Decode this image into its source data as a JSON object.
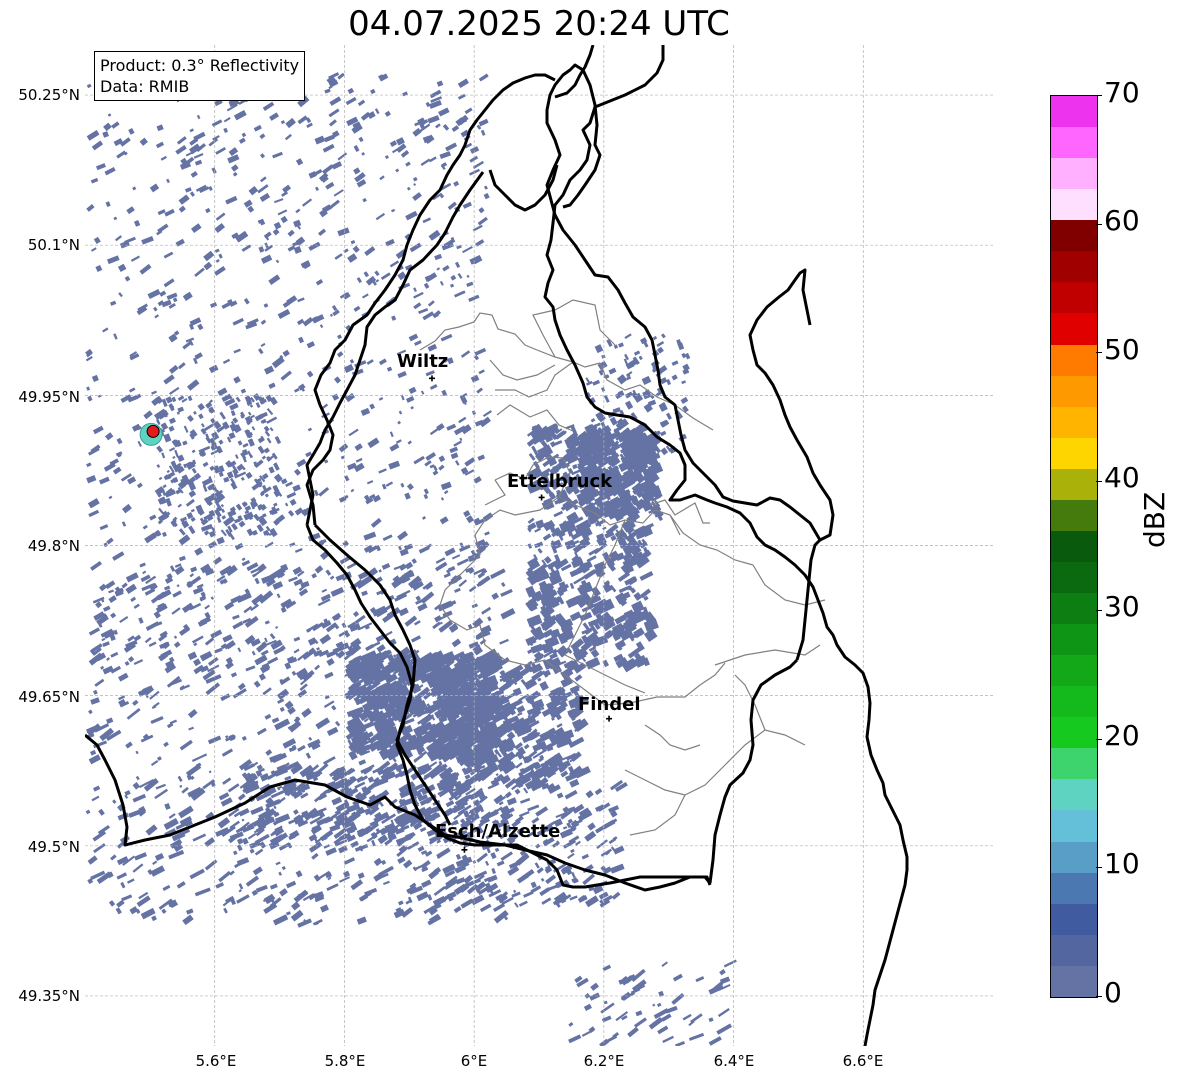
{
  "title": "04.07.2025 20:24 UTC",
  "product": {
    "line1": "Product: 0.3° Reflectivity",
    "line2": "Data: RMIB"
  },
  "lat_labels": [
    "50.25°N",
    "50.1°N",
    "49.95°N",
    "49.8°N",
    "49.65°N",
    "49.5°N",
    "49.35°N"
  ],
  "lon_labels": [
    "5.6°E",
    "5.8°E",
    "6°E",
    "6.2°E",
    "6.4°E",
    "6.6°E"
  ],
  "cities": [
    {
      "name": "Wiltz",
      "lon": 5.935,
      "lat": 49.967
    },
    {
      "name": "Ettelbruck",
      "lon": 6.104,
      "lat": 49.848
    },
    {
      "name": "Findel",
      "lon": 6.208,
      "lat": 49.627
    },
    {
      "name": "Esch/Alzette",
      "lon": 5.985,
      "lat": 49.496
    }
  ],
  "radar_site": {
    "lon": 5.505,
    "lat": 49.914
  },
  "extent": {
    "lon": [
      5.4,
      6.8
    ],
    "lat": [
      49.3,
      50.3
    ]
  },
  "colorbar": {
    "label": "dBZ",
    "min": 0,
    "max": 70,
    "ticks": [
      "0",
      "10",
      "20",
      "30",
      "40",
      "50",
      "60",
      "70"
    ],
    "colors": [
      "#6472a4",
      "#5366a0",
      "#405ba0",
      "#4b78b1",
      "#589ec6",
      "#64bfd8",
      "#5fd3c2",
      "#3dd46e",
      "#16c91f",
      "#14b91c",
      "#12a818",
      "#0f9515",
      "#0d7e12",
      "#0b6a0f",
      "#095a0c",
      "#457a0d",
      "#aab20a",
      "#ffd500",
      "#ffb400",
      "#ff9900",
      "#ff7b00",
      "#e10000",
      "#c00000",
      "#a00000",
      "#800000",
      "#ffdfff",
      "#ffb0ff",
      "#ff66ff",
      "#ee33ee"
    ]
  },
  "echo_color": "#6472a4"
}
